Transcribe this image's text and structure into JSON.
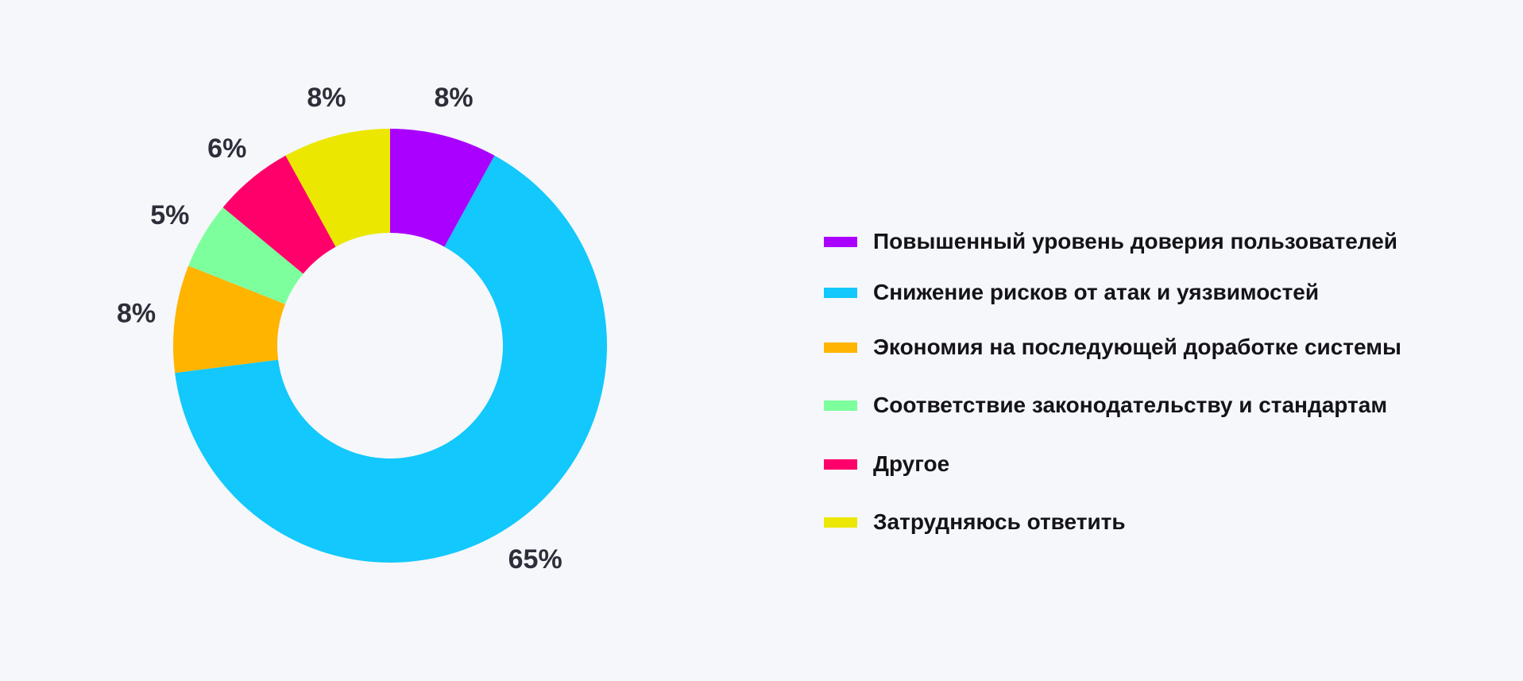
{
  "chart_data": {
    "type": "pie",
    "donut": true,
    "legend_position": "right",
    "slices": [
      {
        "label": "Повышенный уровень доверия пользователей",
        "value": 8,
        "value_label": "8%",
        "color": "#aa00ff"
      },
      {
        "label": "Снижение рисков от атак и уязвимостей",
        "value": 65,
        "value_label": "65%",
        "color": "#12c8fc"
      },
      {
        "label": "Экономия на последующей доработке системы",
        "value": 8,
        "value_label": "8%",
        "color": "#ffb400"
      },
      {
        "label": "Соответствие законодательству и стандартам",
        "value": 5,
        "value_label": "5%",
        "color": "#7dff9d"
      },
      {
        "label": "Другое",
        "value": 6,
        "value_label": "6%",
        "color": "#ff006a"
      },
      {
        "label": "Затрудняюсь ответить",
        "value": 8,
        "value_label": "8%",
        "color": "#ebe700"
      }
    ]
  }
}
